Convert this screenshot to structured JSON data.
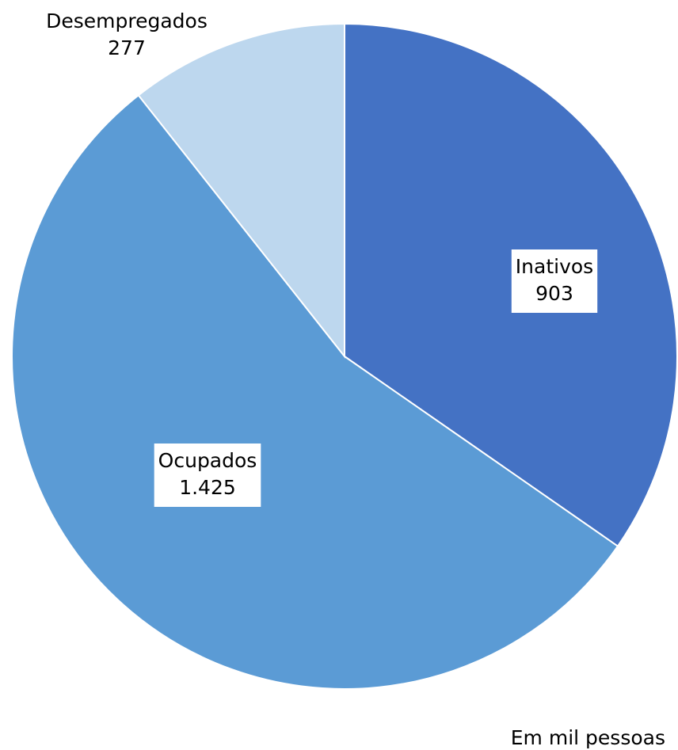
{
  "chart_data": {
    "type": "pie",
    "categories": [
      "Inativos",
      "Ocupados",
      "Desempregados"
    ],
    "values": [
      903,
      1425,
      277
    ],
    "value_labels": [
      "903",
      "1.425",
      "277"
    ],
    "colors": [
      "#4472c4",
      "#5b9bd5",
      "#bdd7ee"
    ],
    "note": "Em mil pessoas"
  }
}
